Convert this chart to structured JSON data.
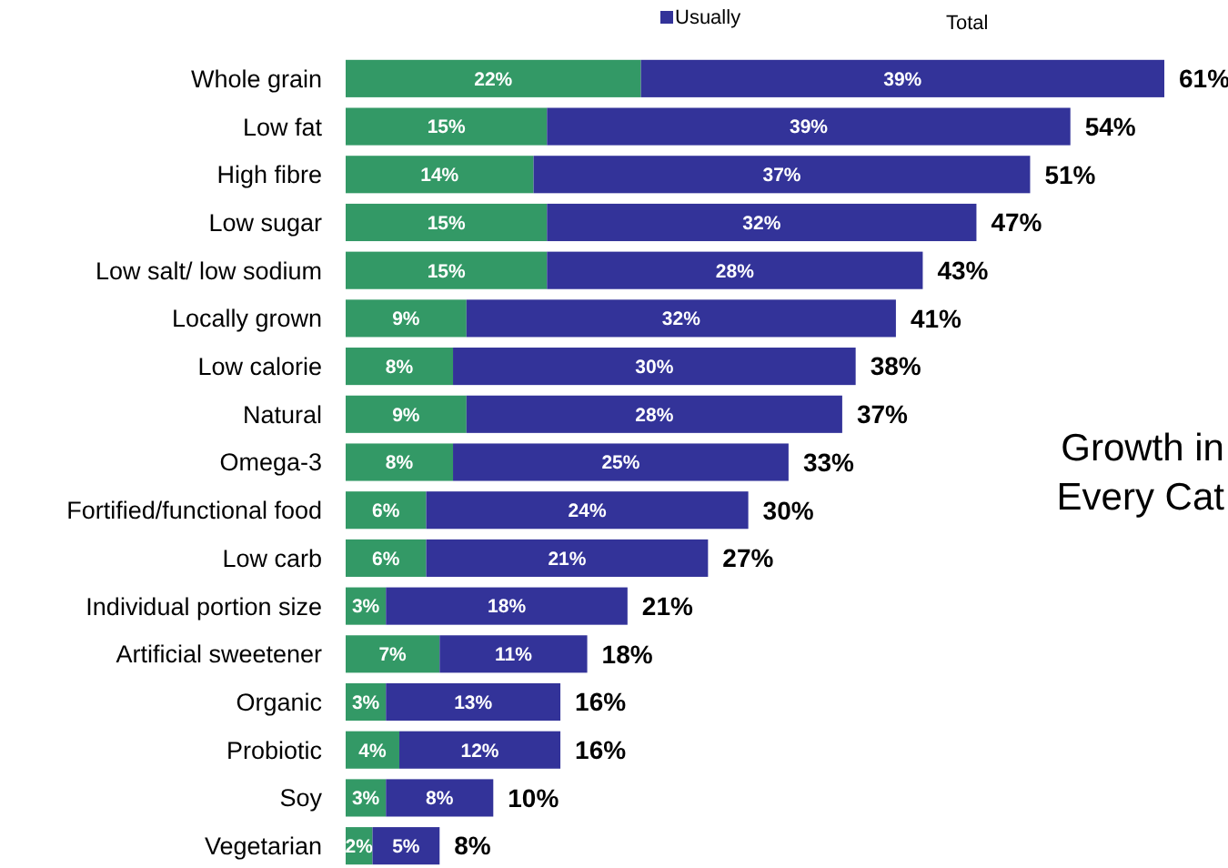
{
  "chart_data": {
    "type": "bar",
    "orientation": "horizontal",
    "stacked": true,
    "tick_labels": "y",
    "legend": "top",
    "categories": [
      "Whole grain",
      "Low fat",
      "High fibre",
      "Low sugar",
      "Low salt/ low sodium",
      "Locally grown",
      "Low calorie",
      "Natural",
      "Omega-3",
      "Fortified/functional food",
      "Low carb",
      "Individual portion size",
      "Artificial sweetener",
      "Organic",
      "Probiotic",
      "Soy",
      "Vegetarian"
    ],
    "series": [
      {
        "color": "#339966",
        "values": [
          22,
          15,
          14,
          15,
          15,
          9,
          8,
          9,
          8,
          6,
          6,
          3,
          7,
          3,
          4,
          3,
          2
        ],
        "value_labels": [
          "22%",
          "15%",
          "14%",
          "15%",
          "15%",
          "9%",
          "8%",
          "9%",
          "8%",
          "6%",
          "6%",
          "3%",
          "7%",
          "3%",
          "4%",
          "3%",
          "2%"
        ]
      },
      {
        "name": "Usually",
        "color": "#333399",
        "values": [
          39,
          39,
          37,
          32,
          28,
          32,
          30,
          28,
          25,
          24,
          21,
          18,
          11,
          13,
          12,
          8,
          5
        ],
        "value_labels": [
          "39%",
          "39%",
          "37%",
          "32%",
          "28%",
          "32%",
          "30%",
          "28%",
          "25%",
          "24%",
          "21%",
          "18%",
          "11%",
          "13%",
          "12%",
          "8%",
          "5%"
        ]
      }
    ],
    "totals": [
      "61%",
      "54%",
      "51%",
      "47%",
      "43%",
      "41%",
      "38%",
      "37%",
      "33%",
      "30%",
      "27%",
      "21%",
      "18%",
      "16%",
      "16%",
      "10%",
      "8%"
    ],
    "annotations": [
      "Total",
      "Growth in\nEvery Cat"
    ]
  }
}
